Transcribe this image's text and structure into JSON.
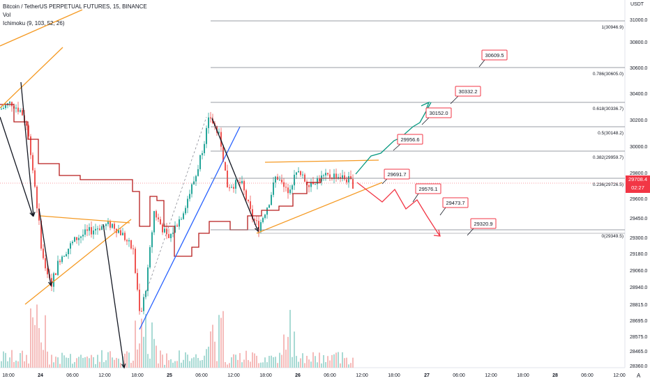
{
  "header": {
    "symbol_line": "Bitcoin / TetherUS PERPETUAL FUTURES, 15, BINANCE",
    "vol_label": "Vol",
    "indicator_label": "Ichimoku (9, 103, 52, 26)"
  },
  "price_axis": {
    "unit": "USDT",
    "ticks": [
      "31000.0",
      "30800.0",
      "30600.0",
      "30400.0",
      "30200.0",
      "30000.0",
      "29800.0",
      "29600.0",
      "29450.0",
      "29300.0",
      "29180.0",
      "29060.0",
      "28940.0",
      "28815.0",
      "28695.0",
      "28575.0",
      "28465.0",
      "28360.0"
    ],
    "current_price": "29708.4",
    "countdown": "02:27"
  },
  "time_axis": {
    "labels": [
      "18:00",
      "24",
      "06:00",
      "12:00",
      "18:00",
      "25",
      "06:00",
      "12:00",
      "18:00",
      "26",
      "06:00",
      "12:00",
      "18:00",
      "27",
      "06:00",
      "12:00",
      "18:00",
      "28",
      "06:00",
      "12:00"
    ]
  },
  "fib_levels": [
    {
      "label": "1(30946.9)"
    },
    {
      "label": "0.786(30605.0)"
    },
    {
      "label": "0.618(30336.7)"
    },
    {
      "label": "0.5(30148.2)"
    },
    {
      "label": "0.382(29959.7)"
    },
    {
      "label": "0.236(29726.5)"
    },
    {
      "label": "0(29349.5)"
    }
  ],
  "targets": {
    "up": [
      "29956.6",
      "30152.0",
      "30332.2",
      "30609.5"
    ],
    "down": [
      "29691.7",
      "29576.1",
      "29473.7",
      "29320.9"
    ]
  },
  "colors": {
    "up_candle": "#26a69a",
    "down_candle": "#ef5350",
    "ichimoku_line": "#b71c1c",
    "orange_line": "#f59a23",
    "blue_line": "#2962ff",
    "fib_line": "#787b86",
    "up_path": "#089981",
    "down_path": "#f23645",
    "price_badge": "#f23645"
  },
  "corner_label": "A"
}
